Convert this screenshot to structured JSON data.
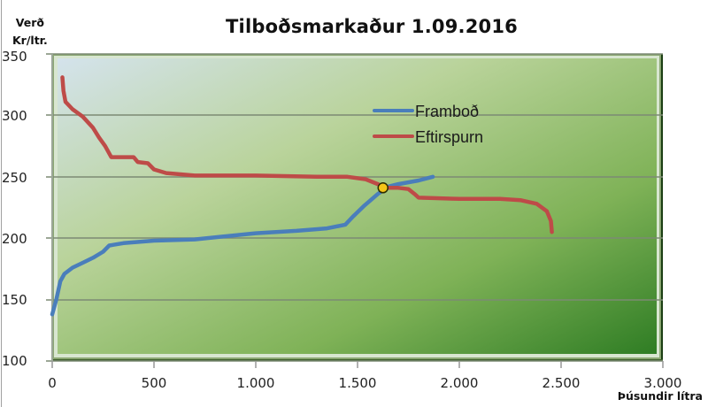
{
  "chart_data": {
    "type": "line",
    "title": "Tilboðsmarkaður 1.09.2016",
    "ylabel": "Verð Kr/ltr.",
    "xlabel": "Þúsundir lítra",
    "xlim": [
      0,
      3000
    ],
    "ylim": [
      100,
      350
    ],
    "x_ticks": [
      "0",
      "500",
      "1.000",
      "1.500",
      "2.000",
      "2.500",
      "3.000"
    ],
    "y_ticks": [
      "100",
      "150",
      "200",
      "250",
      "300",
      "350"
    ],
    "grid": "horizontal",
    "legend_position": "inside-upper-center",
    "series": [
      {
        "name": "Framboð",
        "color": "#4a7ebb",
        "points": [
          [
            0,
            138
          ],
          [
            20,
            150
          ],
          [
            40,
            165
          ],
          [
            60,
            171
          ],
          [
            100,
            176
          ],
          [
            150,
            180
          ],
          [
            200,
            184
          ],
          [
            250,
            189
          ],
          [
            280,
            194
          ],
          [
            350,
            196
          ],
          [
            500,
            198
          ],
          [
            700,
            199
          ],
          [
            1000,
            204
          ],
          [
            1200,
            206
          ],
          [
            1350,
            208
          ],
          [
            1440,
            211
          ],
          [
            1480,
            218
          ],
          [
            1530,
            226
          ],
          [
            1600,
            236
          ],
          [
            1650,
            242
          ],
          [
            1700,
            244
          ],
          [
            1800,
            247
          ],
          [
            1870,
            250
          ]
        ]
      },
      {
        "name": "Eftirspurn",
        "color": "#be4b48",
        "points": [
          [
            50,
            331
          ],
          [
            55,
            320
          ],
          [
            65,
            311
          ],
          [
            100,
            305
          ],
          [
            150,
            299
          ],
          [
            200,
            290
          ],
          [
            230,
            282
          ],
          [
            260,
            275
          ],
          [
            290,
            266
          ],
          [
            400,
            266
          ],
          [
            420,
            262
          ],
          [
            470,
            261
          ],
          [
            500,
            256
          ],
          [
            560,
            253
          ],
          [
            700,
            251
          ],
          [
            1000,
            251
          ],
          [
            1300,
            250
          ],
          [
            1450,
            250
          ],
          [
            1540,
            248
          ],
          [
            1600,
            244
          ],
          [
            1630,
            241
          ],
          [
            1700,
            241
          ],
          [
            1750,
            240
          ],
          [
            1780,
            236
          ],
          [
            1800,
            233
          ],
          [
            2000,
            232
          ],
          [
            2200,
            232
          ],
          [
            2300,
            231
          ],
          [
            2380,
            228
          ],
          [
            2430,
            222
          ],
          [
            2450,
            214
          ],
          [
            2455,
            205
          ]
        ]
      }
    ],
    "annotations": [
      {
        "type": "marker",
        "label": "equilibrium",
        "x": 1625,
        "y": 241,
        "color": "#f5c518"
      }
    ]
  },
  "labels": {
    "title": "Tilboðsmarkaður 1.09.2016",
    "ylabel_line1": "Verð",
    "ylabel_line2": "Kr/ltr.",
    "xlabel": "Þúsundir lítra",
    "legend_supply": "Framboð",
    "legend_demand": "Eftirspurn"
  }
}
